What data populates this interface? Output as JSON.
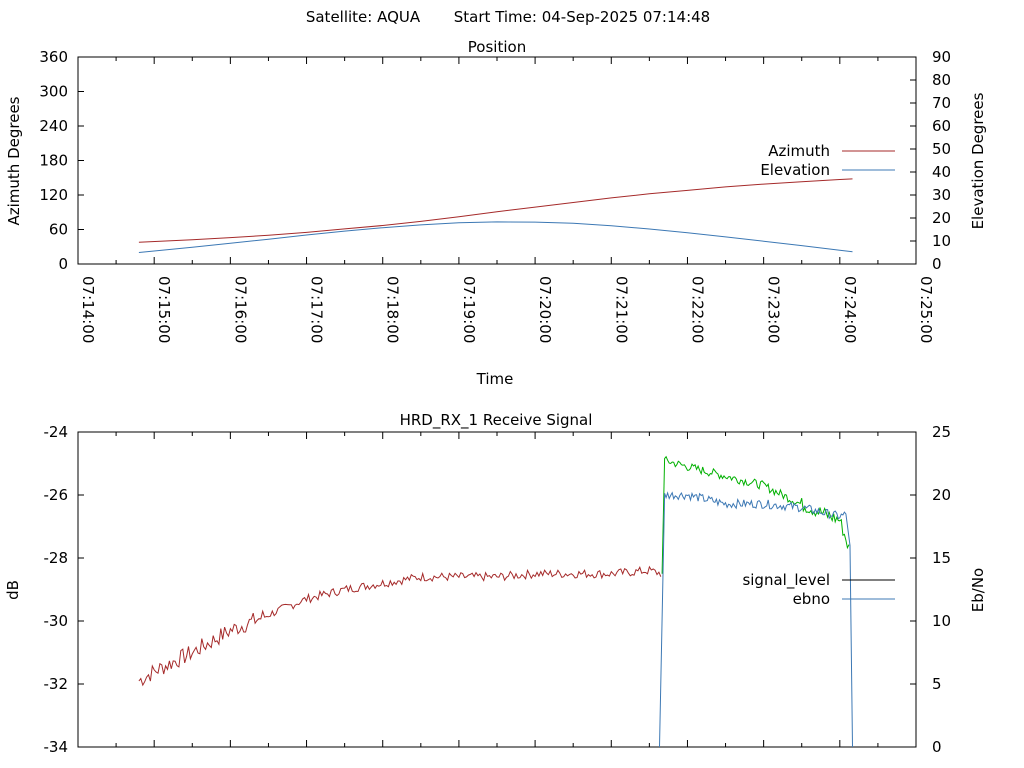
{
  "header": {
    "satellite_label": "Satellite: AQUA",
    "start_label": "Start Time: 04-Sep-2025 07:14:48"
  },
  "colors": {
    "azimuth": "#a52a2a",
    "elevation": "#3c78b4",
    "signal_low": "#a52a2a",
    "signal_high": "#00b000",
    "ebno": "#3c78b4",
    "signal_legend": "#000000"
  },
  "chart_data": [
    {
      "type": "line",
      "title": "Position",
      "xlabel": "Time",
      "ylabel": "Azimuth Degrees",
      "y2label": "Elevation Degrees",
      "xlim": [
        "07:14:00",
        "07:25:00"
      ],
      "xticks": [
        "07:14:00",
        "07:15:00",
        "07:16:00",
        "07:17:00",
        "07:18:00",
        "07:19:00",
        "07:20:00",
        "07:21:00",
        "07:22:00",
        "07:23:00",
        "07:24:00",
        "07:25:00"
      ],
      "ylim": [
        0,
        360
      ],
      "yticks": [
        0,
        60,
        120,
        180,
        240,
        300,
        360
      ],
      "y2lim": [
        0,
        90
      ],
      "y2ticks": [
        0,
        10,
        20,
        30,
        40,
        50,
        60,
        70,
        80,
        90
      ],
      "legend_position": "right",
      "series": [
        {
          "name": "Azimuth",
          "axis": "left",
          "x": [
            "07:14:48",
            "07:15:30",
            "07:16:00",
            "07:16:30",
            "07:17:00",
            "07:17:30",
            "07:18:00",
            "07:18:30",
            "07:19:00",
            "07:19:30",
            "07:20:00",
            "07:20:30",
            "07:21:00",
            "07:21:30",
            "07:22:00",
            "07:22:30",
            "07:23:00",
            "07:23:30",
            "07:24:00",
            "07:24:10"
          ],
          "y": [
            38,
            42,
            46,
            50,
            55,
            61,
            67,
            74,
            82,
            91,
            99,
            107,
            115,
            122,
            128,
            134,
            139,
            143,
            147,
            148
          ]
        },
        {
          "name": "Elevation",
          "axis": "right",
          "x": [
            "07:14:48",
            "07:15:30",
            "07:16:00",
            "07:16:30",
            "07:17:00",
            "07:17:30",
            "07:18:00",
            "07:18:30",
            "07:19:00",
            "07:19:30",
            "07:20:00",
            "07:20:30",
            "07:21:00",
            "07:21:30",
            "07:22:00",
            "07:22:30",
            "07:23:00",
            "07:23:30",
            "07:24:00",
            "07:24:10"
          ],
          "y": [
            5,
            7.3,
            9,
            10.8,
            12.6,
            14.3,
            15.8,
            17,
            17.9,
            18.3,
            18.2,
            17.7,
            16.6,
            15.2,
            13.6,
            11.8,
            9.9,
            8,
            6,
            5.3
          ]
        }
      ]
    },
    {
      "type": "line",
      "title": "HRD_RX_1 Receive Signal",
      "xlabel": "",
      "ylabel": "dB",
      "y2label": "Eb/No",
      "xlim": [
        "07:14:00",
        "07:25:00"
      ],
      "ylim": [
        -34,
        -24
      ],
      "yticks": [
        -34,
        -32,
        -30,
        -28,
        -26,
        -24
      ],
      "y2lim": [
        0,
        25
      ],
      "y2ticks": [
        0,
        5,
        10,
        15,
        20,
        25
      ],
      "legend_position": "right",
      "series": [
        {
          "name": "signal_level",
          "axis": "left",
          "x": [
            "07:14:48",
            "07:15:00",
            "07:15:30",
            "07:16:00",
            "07:16:30",
            "07:17:00",
            "07:17:30",
            "07:18:00",
            "07:18:30",
            "07:19:00",
            "07:19:30",
            "07:20:00",
            "07:20:30",
            "07:21:00",
            "07:21:30",
            "07:21:40",
            "07:21:42",
            "07:22:00",
            "07:22:30",
            "07:23:00",
            "07:23:30",
            "07:24:00",
            "07:24:08"
          ],
          "y": [
            -31.9,
            -31.6,
            -31.0,
            -30.3,
            -29.8,
            -29.3,
            -29.0,
            -28.8,
            -28.6,
            -28.6,
            -28.6,
            -28.5,
            -28.5,
            -28.5,
            -28.4,
            -28.5,
            -24.9,
            -25.1,
            -25.4,
            -25.7,
            -26.3,
            -26.8,
            -27.8
          ]
        },
        {
          "name": "ebno",
          "axis": "right",
          "x": [
            "07:21:38",
            "07:21:42",
            "07:22:00",
            "07:22:30",
            "07:23:00",
            "07:23:30",
            "07:24:00",
            "07:24:06",
            "07:24:08",
            "07:24:10"
          ],
          "y": [
            0,
            20,
            20,
            19.3,
            19.3,
            19,
            18.3,
            18.5,
            16,
            0
          ]
        }
      ]
    }
  ]
}
